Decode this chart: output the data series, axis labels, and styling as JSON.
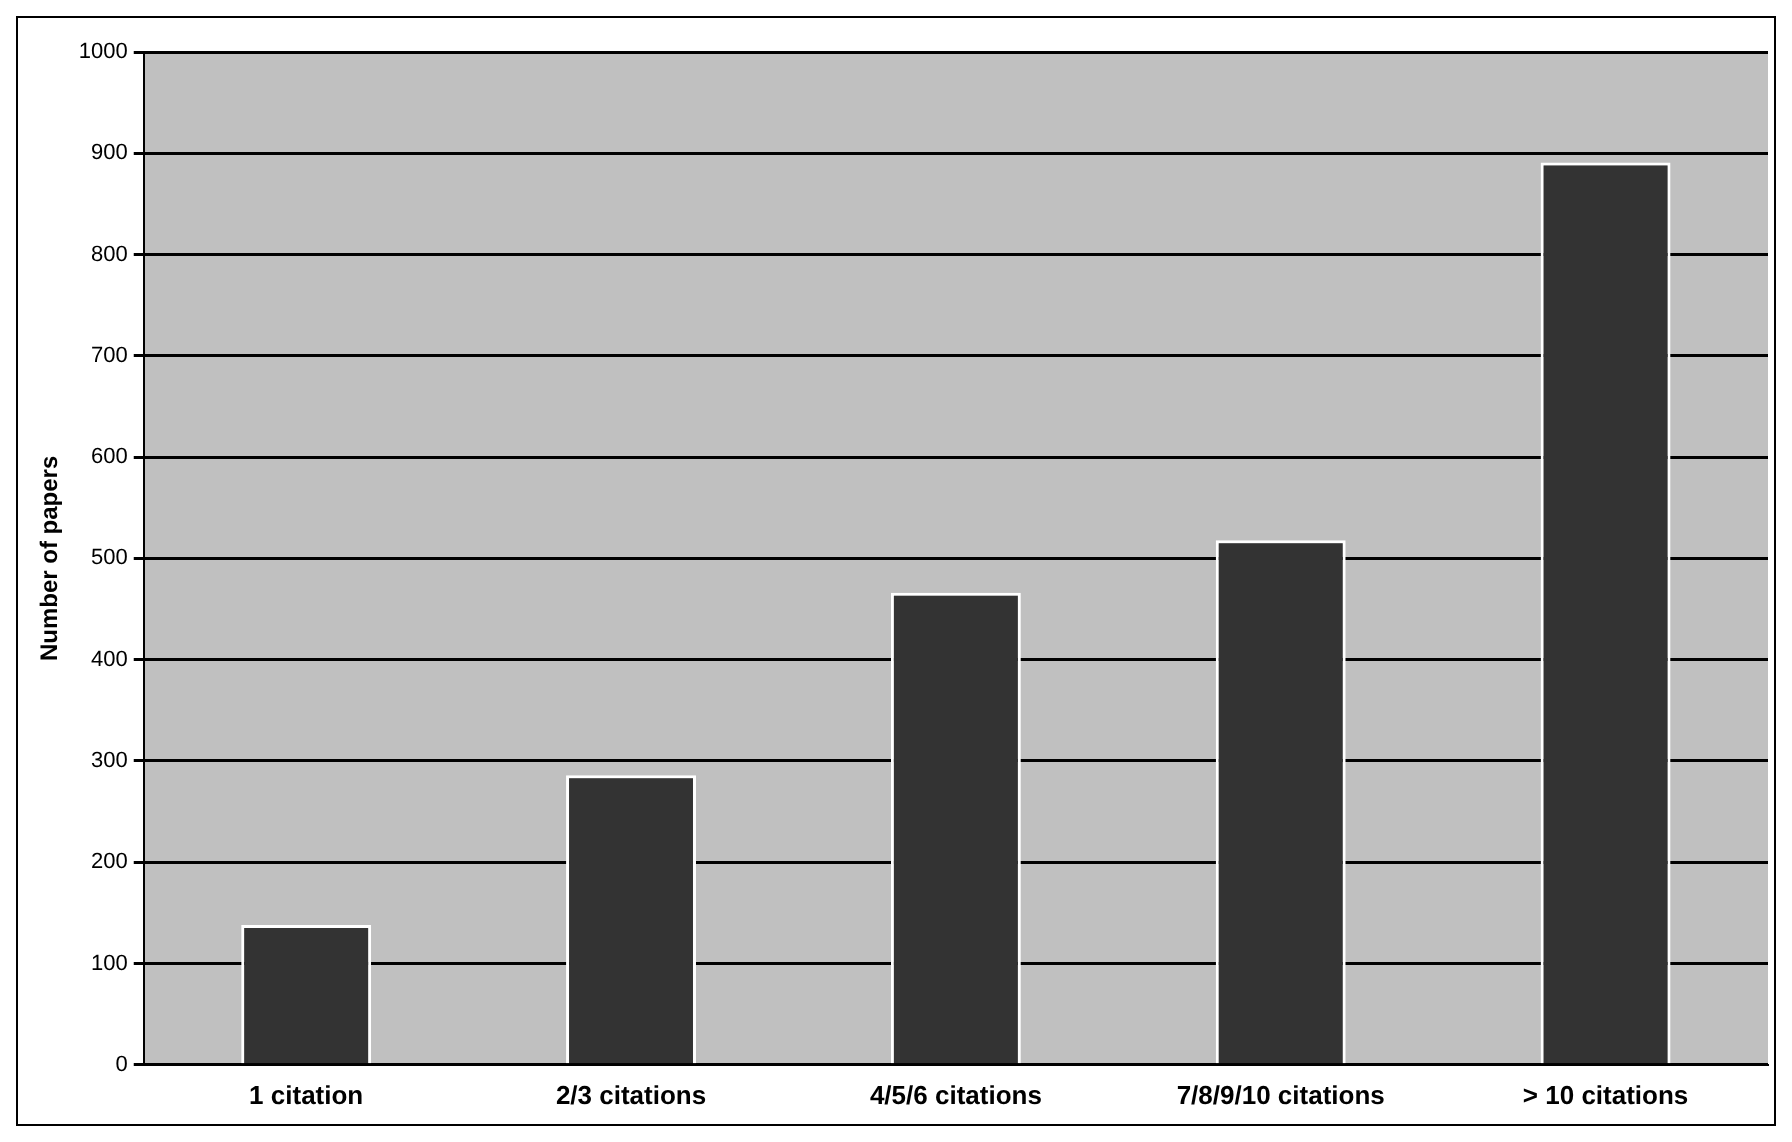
{
  "chart_data": {
    "type": "bar",
    "ylabel": "Number of papers",
    "categories": [
      "1 citation",
      "2/3 citations",
      "4/5/6 citations",
      "7/8/9/10 citations",
      "> 10 citations"
    ],
    "values": [
      138,
      286,
      466,
      518,
      891
    ],
    "color": "#333333",
    "ylim": [
      0,
      1000
    ],
    "yticks": [
      0,
      100,
      200,
      300,
      400,
      500,
      600,
      700,
      800,
      900,
      1000
    ],
    "grid": "y",
    "legend": false
  }
}
